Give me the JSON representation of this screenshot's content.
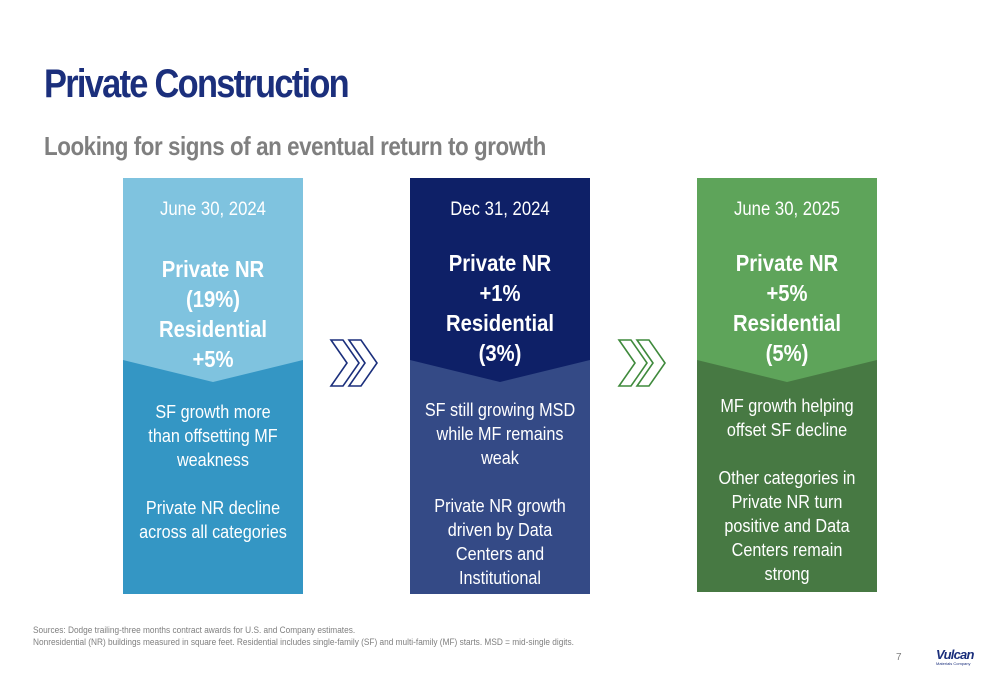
{
  "slide": {
    "title": "Private Construction",
    "subtitle": "Looking for signs of an eventual return to growth"
  },
  "cards": [
    {
      "date": "June 30, 2024",
      "headline": [
        "Private NR",
        "(19%)",
        "Residential",
        "+5%"
      ],
      "notes": [
        "SF growth more than offsetting MF weakness",
        "Private NR decline across all categories"
      ],
      "colors": {
        "top": "#7fc3df",
        "bottom": "#3496c4"
      }
    },
    {
      "date": "Dec 31, 2024",
      "headline": [
        "Private NR",
        "+1%",
        "Residential",
        "(3%)"
      ],
      "notes": [
        "SF still growing MSD while MF remains weak",
        "Private NR growth driven by Data Centers and Institutional"
      ],
      "colors": {
        "top": "#0e2067",
        "bottom": "#344a86"
      }
    },
    {
      "date": "June 30, 2025",
      "headline": [
        "Private NR",
        "+5%",
        "Residential",
        "(5%)"
      ],
      "notes": [
        "MF growth helping offset SF decline",
        "Other categories in Private NR turn positive and Data Centers remain strong"
      ],
      "colors": {
        "top": "#5ea45a",
        "bottom": "#477943"
      }
    }
  ],
  "arrows": [
    {
      "icon": "double-chevron-right-icon",
      "color": "#1b2f7c"
    },
    {
      "icon": "double-chevron-right-icon",
      "color": "#3f8a3c"
    }
  ],
  "footer": {
    "sources": "Sources: Dodge trailing-three months contract awards for U.S. and Company estimates.",
    "definitions": "Nonresidential (NR) buildings measured in square feet.  Residential includes single-family (SF) and multi-family (MF) starts.  MSD = mid-single digits.",
    "page_number": "7",
    "logo_text": "Vulcan",
    "logo_subtext": "Materials Company"
  }
}
